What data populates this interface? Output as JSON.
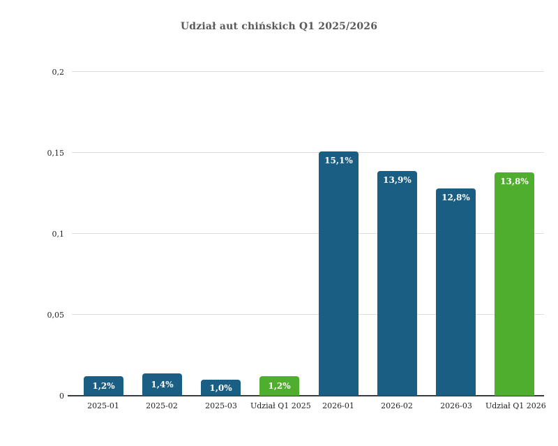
{
  "title": "Udział aut chińskich Q1 2025/2026",
  "colors": {
    "bar_blue": "#1b5e83",
    "bar_green": "#4fae2d",
    "grid": "#dcdcdc",
    "axis_line": "#343b41",
    "title_text": "#595959",
    "tick_text": "#1f1f1f",
    "data_label_text": "#ffffff",
    "background": "#ffffff"
  },
  "chart_data": {
    "type": "bar",
    "title": "Udział aut chińskich Q1 2025/2026",
    "categories": [
      "2025-01",
      "2025-02",
      "2025-03",
      "Udział Q1 2025",
      "2026-01",
      "2026-02",
      "2026-03",
      "Udział Q1 2026"
    ],
    "values": [
      0.012,
      0.014,
      0.01,
      0.012,
      0.151,
      0.139,
      0.128,
      0.138
    ],
    "data_labels": [
      "1,2%",
      "1,4%",
      "1,0%",
      "1,2%",
      "15,1%",
      "13,9%",
      "12,8%",
      "13,8%"
    ],
    "bar_colors": [
      "#1b5e83",
      "#1b5e83",
      "#1b5e83",
      "#4fae2d",
      "#1b5e83",
      "#1b5e83",
      "#1b5e83",
      "#4fae2d"
    ],
    "xlabel": "",
    "ylabel": "",
    "ylim": [
      0,
      0.2
    ],
    "ytick_values": [
      0,
      0.05,
      0.1,
      0.15,
      0.2
    ],
    "ytick_labels": [
      "0",
      "0,05",
      "0,1",
      "0,15",
      "0,2"
    ],
    "grid": true,
    "legend": false
  }
}
